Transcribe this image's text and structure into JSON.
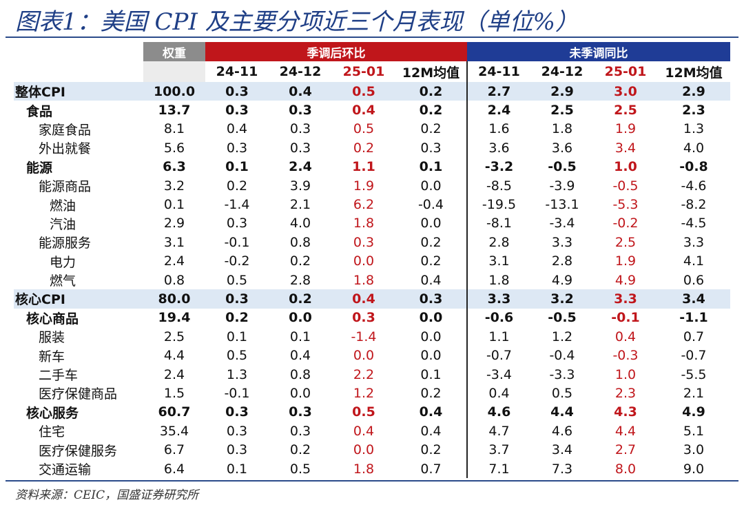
{
  "title": "图表1：美国 CPI 及主要分项近三个月表现（单位%）",
  "source": "资料来源：CEIC，国盛证券研究所",
  "colors": {
    "title": "#1f3f86",
    "sa_header": "#c0161b",
    "nsa_header": "#1f3c96",
    "weight_header": "#8c8c8c",
    "highlight_red": "#c0161b",
    "row_shade": "#dde8f4"
  },
  "header": {
    "weight": "权重",
    "sa_group": "季调后环比",
    "nsa_group": "未季调同比",
    "sa_cols": [
      "24-11",
      "24-12",
      "25-01",
      "12M均值"
    ],
    "nsa_cols": [
      "24-11",
      "24-12",
      "25-01",
      "12M均值"
    ]
  },
  "chart_data": {
    "type": "table",
    "title": "美国 CPI 及主要分项近三个月表现（单位%）",
    "columns": [
      "权重",
      "季调后环比 24-11",
      "季调后环比 24-12",
      "季调后环比 25-01",
      "季调后环比 12M均值",
      "未季调同比 24-11",
      "未季调同比 24-12",
      "未季调同比 25-01",
      "未季调同比 12M均值"
    ],
    "rows": [
      {
        "name": "整体CPI",
        "level": 0,
        "bold": true,
        "shade": true,
        "weight": "100.0",
        "sa": [
          "0.3",
          "0.4",
          "0.5",
          "0.2"
        ],
        "nsa": [
          "2.7",
          "2.9",
          "3.0",
          "2.9"
        ]
      },
      {
        "name": "食品",
        "level": 1,
        "bold": true,
        "shade": false,
        "weight": "13.7",
        "sa": [
          "0.3",
          "0.3",
          "0.4",
          "0.2"
        ],
        "nsa": [
          "2.4",
          "2.5",
          "2.5",
          "2.3"
        ]
      },
      {
        "name": "家庭食品",
        "level": 2,
        "bold": false,
        "shade": false,
        "weight": "8.1",
        "sa": [
          "0.4",
          "0.3",
          "0.5",
          "0.2"
        ],
        "nsa": [
          "1.6",
          "1.8",
          "1.9",
          "1.3"
        ]
      },
      {
        "name": "外出就餐",
        "level": 2,
        "bold": false,
        "shade": false,
        "weight": "5.6",
        "sa": [
          "0.3",
          "0.3",
          "0.2",
          "0.3"
        ],
        "nsa": [
          "3.6",
          "3.6",
          "3.4",
          "4.0"
        ]
      },
      {
        "name": "能源",
        "level": 1,
        "bold": true,
        "shade": false,
        "weight": "6.3",
        "sa": [
          "0.1",
          "2.4",
          "1.1",
          "0.1"
        ],
        "nsa": [
          "-3.2",
          "-0.5",
          "1.0",
          "-0.8"
        ]
      },
      {
        "name": "能源商品",
        "level": 2,
        "bold": false,
        "shade": false,
        "weight": "3.2",
        "sa": [
          "0.2",
          "3.9",
          "1.9",
          "0.0"
        ],
        "nsa": [
          "-8.5",
          "-3.9",
          "-0.5",
          "-4.6"
        ]
      },
      {
        "name": "燃油",
        "level": 3,
        "bold": false,
        "shade": false,
        "weight": "0.1",
        "sa": [
          "-1.4",
          "2.1",
          "6.2",
          "-0.4"
        ],
        "nsa": [
          "-19.5",
          "-13.1",
          "-5.3",
          "-8.2"
        ]
      },
      {
        "name": "汽油",
        "level": 3,
        "bold": false,
        "shade": false,
        "weight": "2.9",
        "sa": [
          "0.3",
          "4.0",
          "1.8",
          "0.0"
        ],
        "nsa": [
          "-8.1",
          "-3.4",
          "-0.2",
          "-4.5"
        ]
      },
      {
        "name": "能源服务",
        "level": 2,
        "bold": false,
        "shade": false,
        "weight": "3.1",
        "sa": [
          "-0.1",
          "0.8",
          "0.3",
          "0.2"
        ],
        "nsa": [
          "2.8",
          "3.3",
          "2.5",
          "3.3"
        ]
      },
      {
        "name": "电力",
        "level": 3,
        "bold": false,
        "shade": false,
        "weight": "2.4",
        "sa": [
          "-0.2",
          "0.2",
          "0.0",
          "0.2"
        ],
        "nsa": [
          "3.1",
          "2.8",
          "1.9",
          "4.1"
        ]
      },
      {
        "name": "燃气",
        "level": 3,
        "bold": false,
        "shade": false,
        "weight": "0.8",
        "sa": [
          "0.5",
          "2.8",
          "1.8",
          "0.4"
        ],
        "nsa": [
          "1.8",
          "4.9",
          "4.9",
          "0.6"
        ]
      },
      {
        "name": "核心CPI",
        "level": 0,
        "bold": true,
        "shade": true,
        "weight": "80.0",
        "sa": [
          "0.3",
          "0.2",
          "0.4",
          "0.3"
        ],
        "nsa": [
          "3.3",
          "3.2",
          "3.3",
          "3.4"
        ]
      },
      {
        "name": "核心商品",
        "level": 1,
        "bold": true,
        "shade": false,
        "weight": "19.4",
        "sa": [
          "0.2",
          "0.0",
          "0.3",
          "0.0"
        ],
        "nsa": [
          "-0.6",
          "-0.5",
          "-0.1",
          "-1.1"
        ]
      },
      {
        "name": "服装",
        "level": 2,
        "bold": false,
        "shade": false,
        "weight": "2.5",
        "sa": [
          "0.1",
          "0.1",
          "-1.4",
          "0.0"
        ],
        "nsa": [
          "1.1",
          "1.2",
          "0.4",
          "0.7"
        ]
      },
      {
        "name": "新车",
        "level": 2,
        "bold": false,
        "shade": false,
        "weight": "4.4",
        "sa": [
          "0.5",
          "0.4",
          "0.0",
          "0.0"
        ],
        "nsa": [
          "-0.7",
          "-0.4",
          "-0.3",
          "-0.7"
        ]
      },
      {
        "name": "二手车",
        "level": 2,
        "bold": false,
        "shade": false,
        "weight": "2.4",
        "sa": [
          "1.3",
          "0.8",
          "2.2",
          "0.1"
        ],
        "nsa": [
          "-3.4",
          "-3.3",
          "1.0",
          "-5.5"
        ]
      },
      {
        "name": "医疗保健商品",
        "level": 2,
        "bold": false,
        "shade": false,
        "weight": "1.5",
        "sa": [
          "-0.1",
          "0.0",
          "1.2",
          "0.2"
        ],
        "nsa": [
          "0.4",
          "0.5",
          "2.3",
          "2.1"
        ]
      },
      {
        "name": "核心服务",
        "level": 1,
        "bold": true,
        "shade": false,
        "weight": "60.7",
        "sa": [
          "0.3",
          "0.3",
          "0.5",
          "0.4"
        ],
        "nsa": [
          "4.6",
          "4.4",
          "4.3",
          "4.9"
        ]
      },
      {
        "name": "住宅",
        "level": 2,
        "bold": false,
        "shade": false,
        "weight": "35.4",
        "sa": [
          "0.3",
          "0.3",
          "0.4",
          "0.4"
        ],
        "nsa": [
          "4.7",
          "4.6",
          "4.4",
          "5.1"
        ]
      },
      {
        "name": "医疗保健服务",
        "level": 2,
        "bold": false,
        "shade": false,
        "weight": "6.7",
        "sa": [
          "0.3",
          "0.2",
          "0.0",
          "0.2"
        ],
        "nsa": [
          "3.7",
          "3.4",
          "2.7",
          "3.0"
        ]
      },
      {
        "name": "交通运输",
        "level": 2,
        "bold": false,
        "shade": false,
        "weight": "6.4",
        "sa": [
          "0.1",
          "0.5",
          "1.8",
          "0.7"
        ],
        "nsa": [
          "7.1",
          "7.3",
          "8.0",
          "9.0"
        ]
      }
    ]
  }
}
